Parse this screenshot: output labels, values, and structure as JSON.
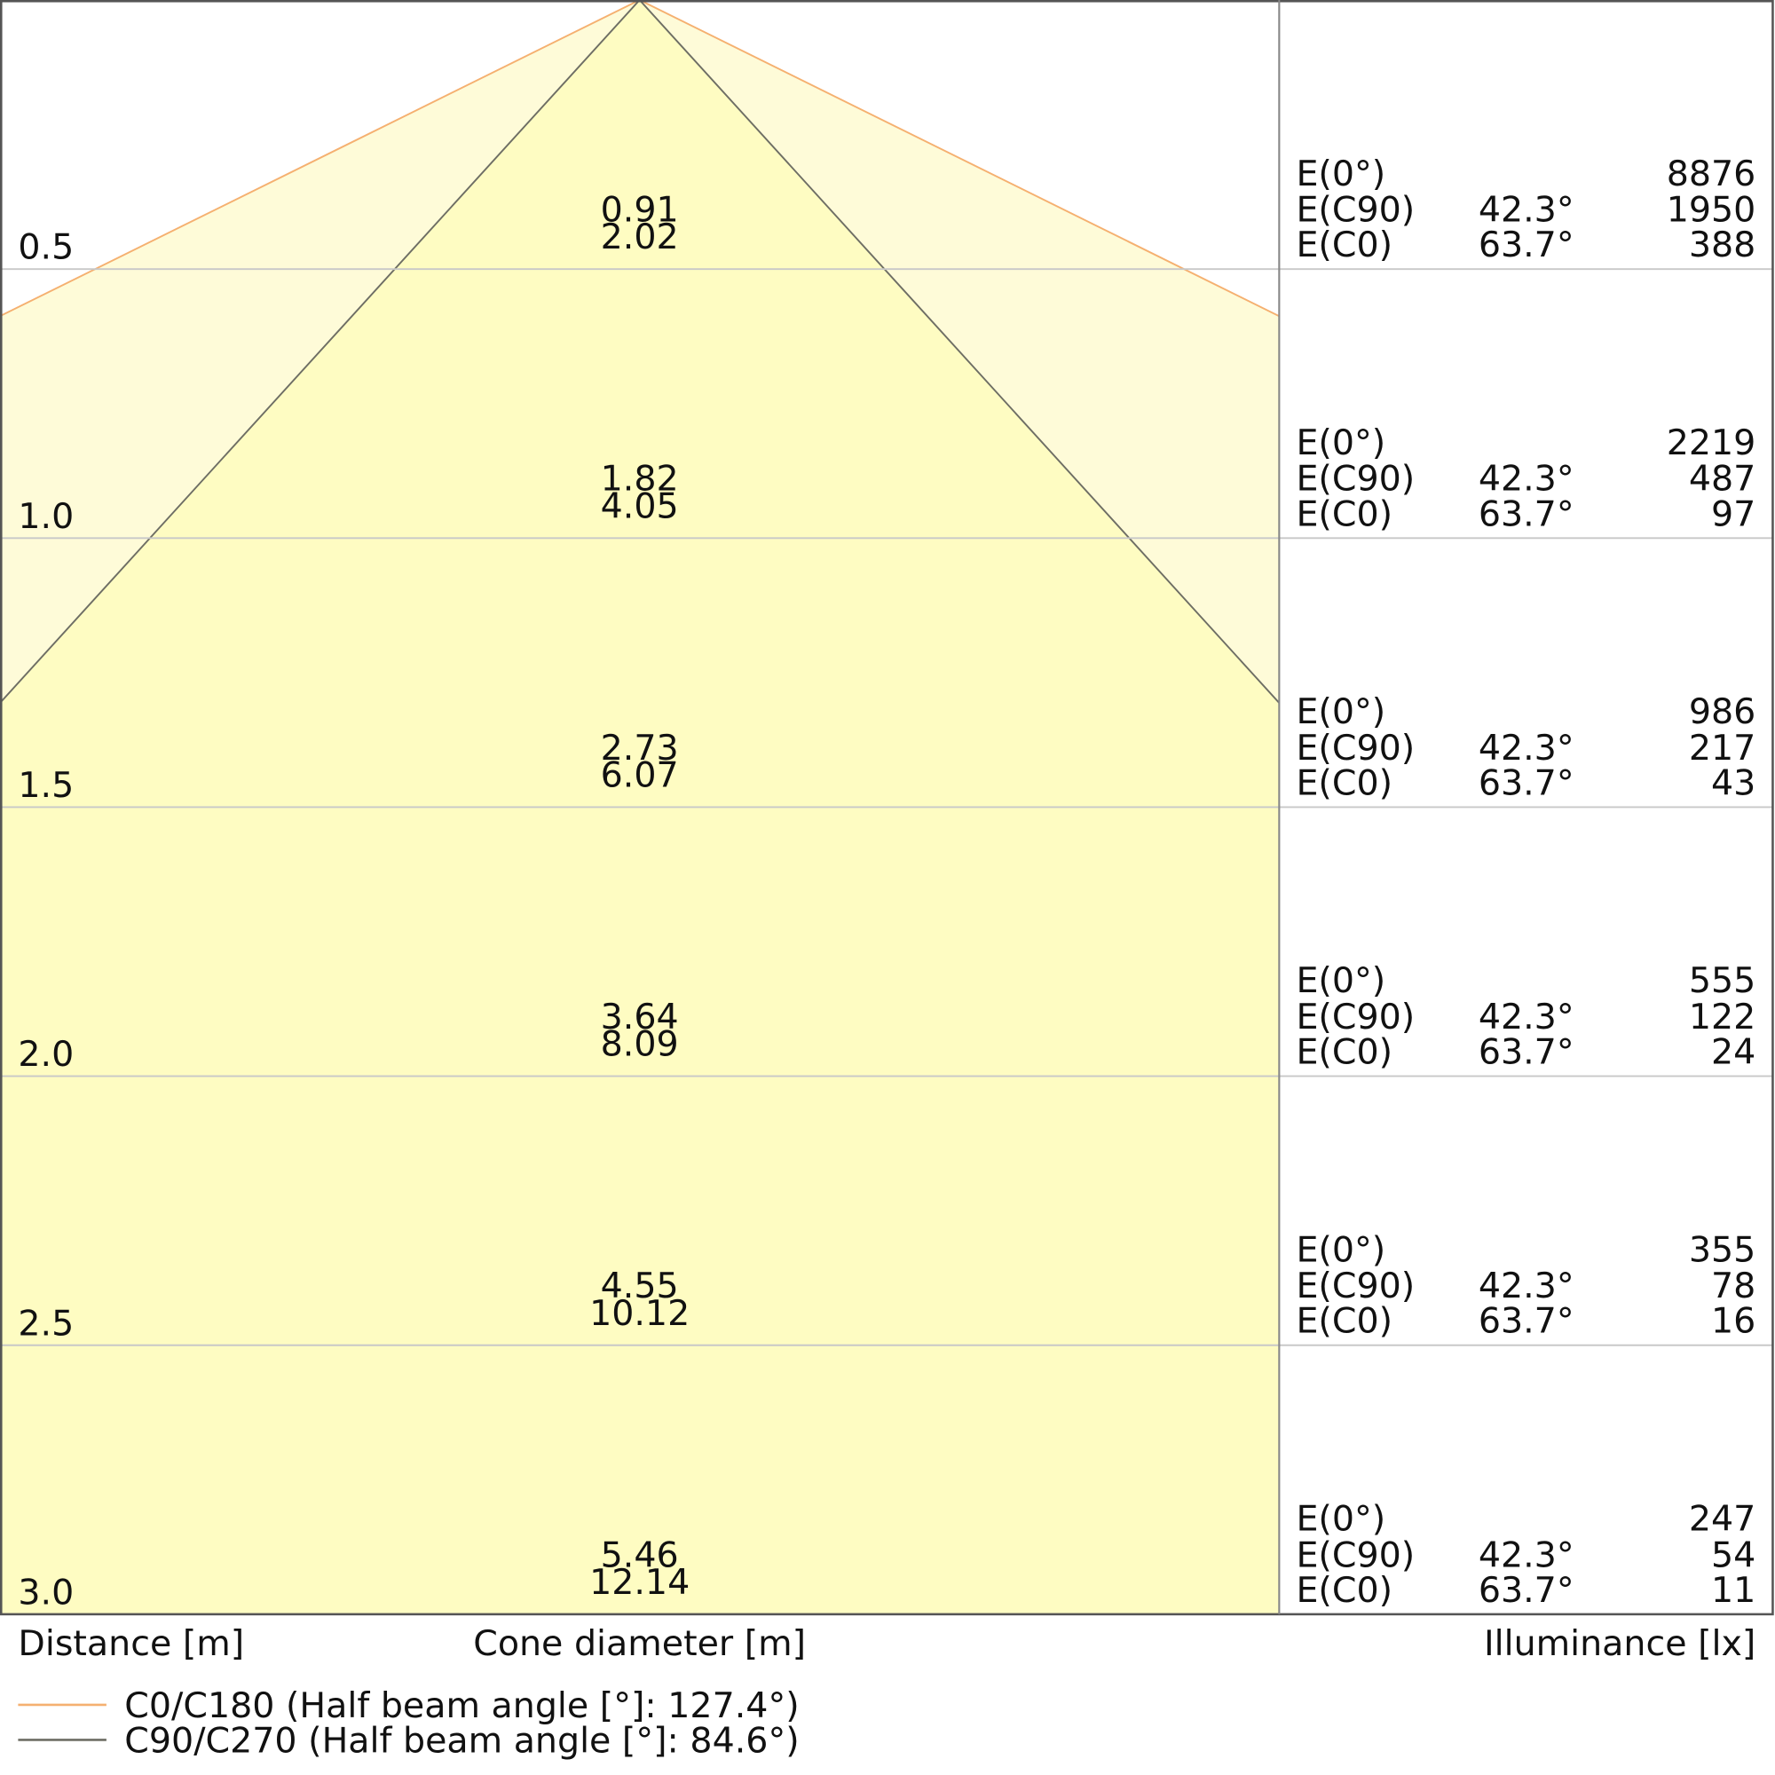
{
  "chart_data": {
    "type": "cone",
    "ylim": [
      0,
      3
    ],
    "series": [
      {
        "name": "C0/C180 (Half beam angle [°]: 127.4°)",
        "beam_angle": 127.4,
        "color": "#f5b070",
        "fill": "#fefbd8"
      },
      {
        "name": "C90/C270 (Half beam angle [°]: 84.6°)",
        "beam_angle": 84.6,
        "color": "#6e6e64",
        "fill": "#fefcc2"
      }
    ],
    "axis_labels": {
      "distance": "Distance [m]",
      "diameter": "Cone diameter [m]",
      "illuminance": "Illuminance [lx]"
    },
    "illuminance_labels": {
      "e0": "E(0°)",
      "ec90": "E(C90)",
      "ec0": "E(C0)",
      "angle_c90": "42.3°",
      "angle_c0": "63.7°"
    },
    "rows": [
      {
        "distance": {
          "value": 0.5,
          "label": "0.5"
        },
        "c90_diameter": 0.91,
        "c0_diameter": 2.02,
        "e0": 8876,
        "ec90": 1950,
        "ec0": 388
      },
      {
        "distance": {
          "value": 1,
          "label": "1.0"
        },
        "c90_diameter": 1.82,
        "c0_diameter": 4.05,
        "e0": 2219,
        "ec90": 487,
        "ec0": 97
      },
      {
        "distance": {
          "value": 1.5,
          "label": "1.5"
        },
        "c90_diameter": 2.73,
        "c0_diameter": 6.07,
        "e0": 986,
        "ec90": 217,
        "ec0": 43
      },
      {
        "distance": {
          "value": 2,
          "label": "2.0"
        },
        "c90_diameter": 3.64,
        "c0_diameter": 8.09,
        "e0": 555,
        "ec90": 122,
        "ec0": 24
      },
      {
        "distance": {
          "value": 2.5,
          "label": "2.5"
        },
        "c90_diameter": 4.55,
        "c0_diameter": 10.12,
        "e0": 355,
        "ec90": 78,
        "ec0": 16
      },
      {
        "distance": {
          "value": 3,
          "label": "3.0"
        },
        "c90_diameter": 5.46,
        "c0_diameter": 12.14,
        "e0": 247,
        "ec90": 54,
        "ec0": 11
      }
    ]
  }
}
